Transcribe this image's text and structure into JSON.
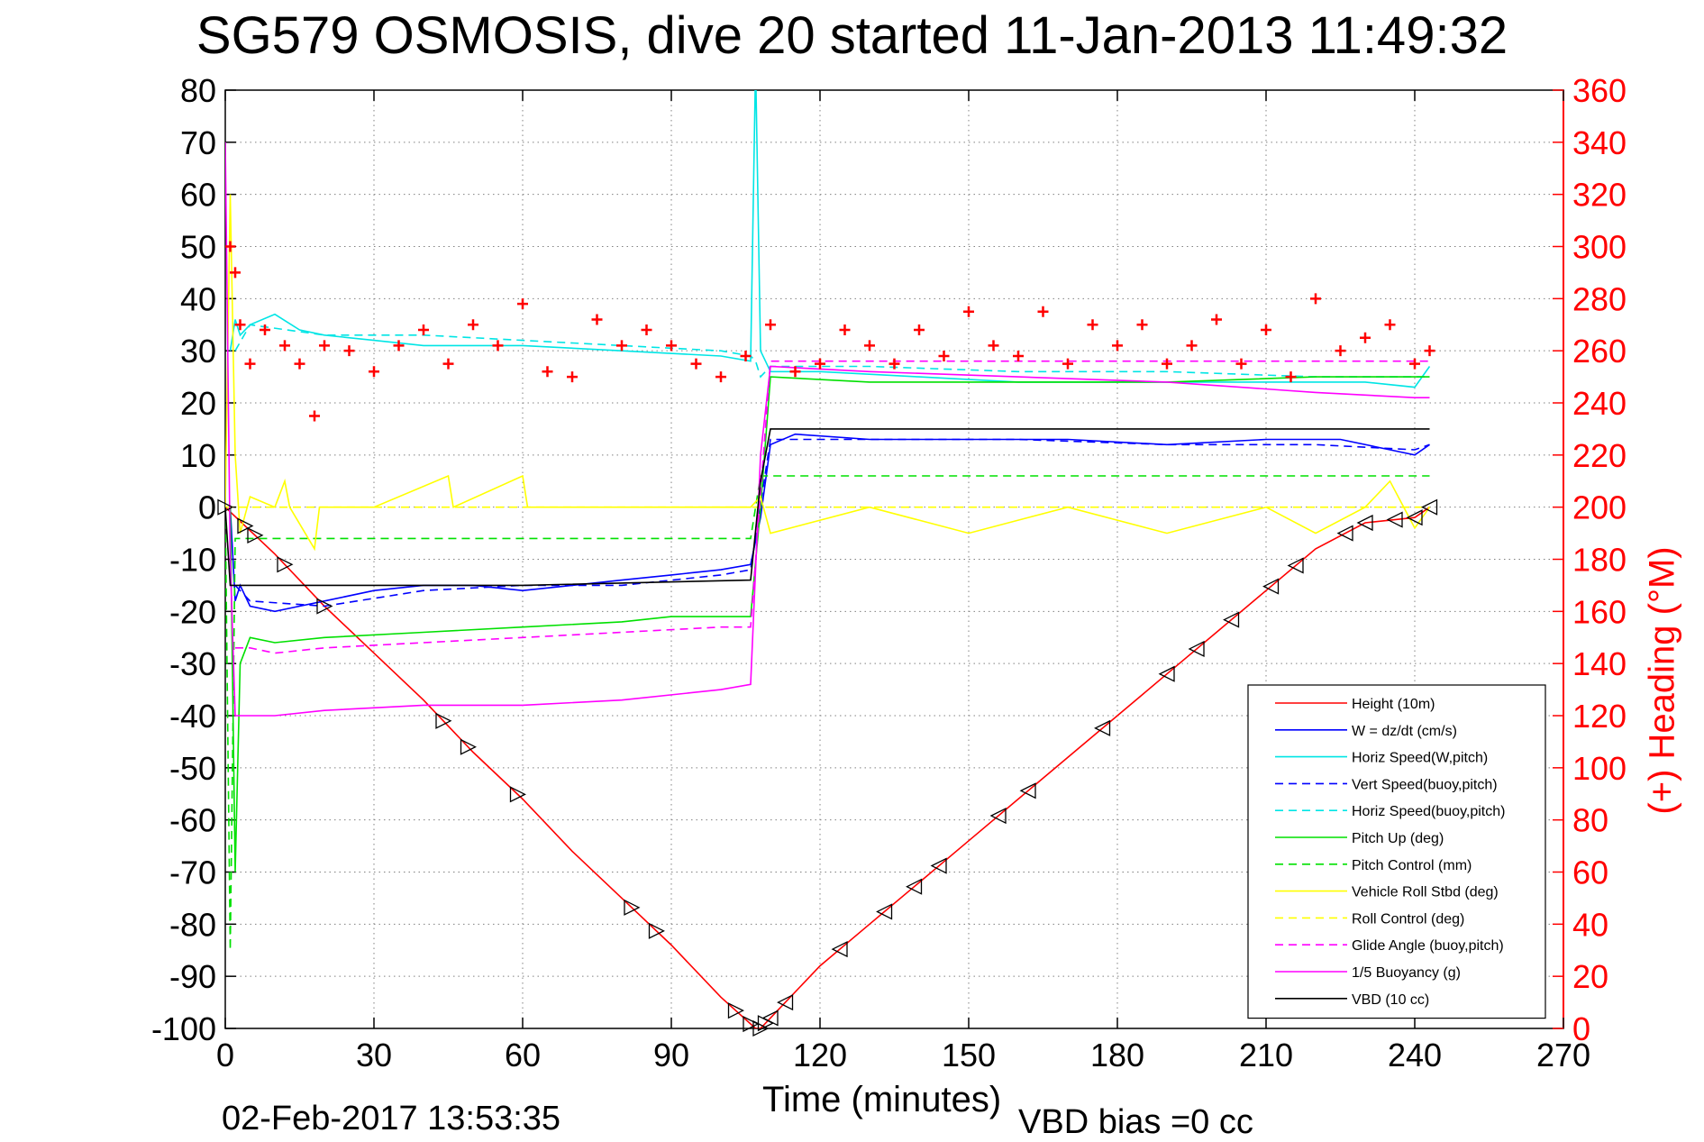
{
  "title": "SG579 OSMOSIS, dive 20 started 11-Jan-2013 11:49:32",
  "timestamp": "02-Feb-2017 13:53:35",
  "vbd_bias": "VBD bias =0 cc",
  "chart_data": {
    "type": "line",
    "title": "SG579 OSMOSIS, dive 20 started 11-Jan-2013 11:49:32",
    "xlabel": "Time (minutes)",
    "ylabel": "",
    "y2label": "(+) Heading (°M)",
    "xlim": [
      0,
      270
    ],
    "ylim": [
      -100,
      80
    ],
    "y2lim": [
      0,
      360
    ],
    "xticks": [
      0,
      30,
      60,
      90,
      120,
      150,
      180,
      210,
      240,
      270
    ],
    "yticks": [
      -100,
      -90,
      -80,
      -70,
      -60,
      -50,
      -40,
      -30,
      -20,
      -10,
      0,
      10,
      20,
      30,
      40,
      50,
      60,
      70,
      80
    ],
    "y2ticks": [
      0,
      20,
      40,
      60,
      80,
      100,
      120,
      140,
      160,
      180,
      200,
      220,
      240,
      260,
      280,
      300,
      320,
      340,
      360
    ],
    "grid": true,
    "legend_position": "bottom-right",
    "series": [
      {
        "name": "Height (10m)",
        "color": "#ff0000",
        "style": "solid",
        "x": [
          0,
          10,
          20,
          30,
          40,
          50,
          60,
          70,
          80,
          90,
          100,
          107,
          108,
          110,
          120,
          130,
          140,
          150,
          160,
          170,
          180,
          190,
          200,
          210,
          220,
          230,
          240,
          243
        ],
        "y": [
          0,
          -9,
          -19,
          -28,
          -37,
          -47,
          -56,
          -66,
          -75,
          -84,
          -94,
          -100,
          -100,
          -98,
          -88,
          -80,
          -72,
          -64,
          -56,
          -48,
          -40,
          -32,
          -24,
          -16,
          -8,
          -3,
          -2,
          0
        ]
      },
      {
        "name": "W = dz/dt (cm/s)",
        "color": "#0000ff",
        "style": "solid",
        "x": [
          1,
          2,
          3,
          5,
          10,
          15,
          20,
          30,
          40,
          50,
          60,
          70,
          80,
          90,
          100,
          106,
          108,
          110,
          115,
          130,
          150,
          170,
          190,
          210,
          225,
          235,
          240,
          243
        ],
        "y": [
          0,
          -18,
          -15,
          -19,
          -20,
          -19,
          -18,
          -16,
          -15,
          -15,
          -16,
          -15,
          -14,
          -13,
          -12,
          -11,
          -2,
          12,
          14,
          13,
          13,
          13,
          12,
          13,
          13,
          11,
          10,
          12
        ]
      },
      {
        "name": "Horiz Speed(W,pitch)",
        "color": "#00e5e5",
        "style": "solid",
        "x": [
          1,
          2,
          3,
          5,
          10,
          15,
          20,
          30,
          40,
          60,
          80,
          100,
          106,
          107,
          108,
          109,
          110,
          120,
          140,
          160,
          180,
          200,
          220,
          230,
          240,
          243
        ],
        "y": [
          30,
          36,
          33,
          35,
          37,
          34,
          33,
          32,
          31,
          31,
          30,
          29,
          28,
          85,
          30,
          28,
          26,
          26,
          25,
          24,
          24,
          24,
          24,
          24,
          23,
          27
        ]
      },
      {
        "name": "Vert Speed(buoy,pitch)",
        "color": "#0000ff",
        "style": "dashed",
        "x": [
          2,
          5,
          20,
          40,
          60,
          80,
          100,
          106,
          110,
          130,
          160,
          190,
          220,
          240,
          243
        ],
        "y": [
          -15,
          -18,
          -19,
          -16,
          -15,
          -15,
          -13,
          -12,
          13,
          13,
          13,
          12,
          12,
          11,
          12
        ]
      },
      {
        "name": "Horiz Speed(buoy,pitch)",
        "color": "#00e5e5",
        "style": "dashed",
        "x": [
          2,
          5,
          20,
          40,
          60,
          80,
          100,
          106,
          107,
          108,
          110,
          130,
          160,
          190,
          220,
          243
        ],
        "y": [
          30,
          35,
          33,
          33,
          32,
          31,
          30,
          29,
          28,
          25,
          27,
          27,
          26,
          26,
          25,
          25
        ]
      },
      {
        "name": "Pitch Up (deg)",
        "color": "#00e000",
        "style": "solid",
        "x": [
          1,
          2,
          3,
          5,
          10,
          20,
          40,
          60,
          80,
          90,
          100,
          106,
          108,
          110,
          130,
          160,
          190,
          220,
          240,
          243
        ],
        "y": [
          0,
          -70,
          -30,
          -25,
          -26,
          -25,
          -24,
          -23,
          -22,
          -21,
          -21,
          -21,
          0,
          25,
          24,
          24,
          24,
          25,
          25,
          25
        ]
      },
      {
        "name": "Pitch Control (mm)",
        "color": "#00e000",
        "style": "dashed",
        "x": [
          0,
          1,
          2,
          5,
          20,
          60,
          106,
          108,
          110,
          243
        ],
        "y": [
          0,
          -85,
          -6,
          -6,
          -6,
          -6,
          -6,
          6,
          6,
          6
        ]
      },
      {
        "name": "Vehicle Roll Stbd (deg)",
        "color": "#ffff00",
        "style": "solid",
        "x": [
          0,
          1,
          2,
          3,
          5,
          10,
          12,
          13,
          18,
          19,
          30,
          45,
          46,
          60,
          61,
          80,
          95,
          106,
          108,
          110,
          130,
          150,
          170,
          190,
          210,
          220,
          230,
          235,
          240,
          243
        ],
        "y": [
          0,
          60,
          10,
          -5,
          2,
          0,
          5,
          0,
          -8,
          0,
          0,
          6,
          0,
          6,
          0,
          0,
          0,
          0,
          2,
          -5,
          0,
          -5,
          0,
          -5,
          0,
          -5,
          0,
          5,
          -4,
          0
        ]
      },
      {
        "name": "Roll Control (deg)",
        "color": "#ffff00",
        "style": "dashed",
        "x": [
          0,
          243
        ],
        "y": [
          0,
          0
        ]
      },
      {
        "name": "Glide Angle (buoy,pitch)",
        "color": "#ff00ff",
        "style": "dashed",
        "x": [
          2,
          5,
          10,
          20,
          40,
          60,
          80,
          100,
          106,
          110,
          130,
          160,
          190,
          220,
          240,
          243
        ],
        "y": [
          -27,
          -27,
          -28,
          -27,
          -26,
          -25,
          -24,
          -23,
          -23,
          28,
          28,
          28,
          28,
          28,
          28,
          28
        ]
      },
      {
        "name": "1/5 Buoyancy (g)",
        "color": "#ff00ff",
        "style": "solid",
        "x": [
          0,
          1,
          2,
          10,
          20,
          40,
          60,
          80,
          100,
          106,
          108,
          110,
          130,
          160,
          190,
          220,
          240,
          243
        ],
        "y": [
          70,
          -10,
          -40,
          -40,
          -39,
          -38,
          -38,
          -37,
          -35,
          -34,
          10,
          27,
          26,
          25,
          24,
          22,
          21,
          21
        ]
      },
      {
        "name": "VBD (10 cc)",
        "color": "#000000",
        "style": "solid",
        "x": [
          0,
          1,
          2,
          5,
          20,
          60,
          106,
          108,
          110,
          243
        ],
        "y": [
          0,
          -15,
          -15,
          -15,
          -15,
          -15,
          -14,
          5,
          15,
          15
        ]
      },
      {
        "name": "(+) Heading",
        "color": "#ff0000",
        "style": "markers",
        "axis": "right",
        "x": [
          1,
          2,
          3,
          5,
          8,
          12,
          15,
          18,
          20,
          25,
          30,
          35,
          40,
          45,
          50,
          55,
          60,
          65,
          70,
          75,
          80,
          85,
          90,
          95,
          100,
          105,
          110,
          115,
          120,
          125,
          130,
          135,
          140,
          145,
          150,
          155,
          160,
          165,
          170,
          175,
          180,
          185,
          190,
          195,
          200,
          205,
          210,
          215,
          220,
          225,
          230,
          235,
          240,
          243
        ],
        "y": [
          300,
          290,
          270,
          255,
          268,
          262,
          255,
          235,
          262,
          260,
          252,
          262,
          268,
          255,
          270,
          262,
          278,
          252,
          250,
          272,
          262,
          268,
          262,
          255,
          250,
          258,
          270,
          252,
          255,
          268,
          262,
          255,
          268,
          258,
          275,
          262,
          258,
          275,
          255,
          270,
          262,
          270,
          255,
          262,
          272,
          255,
          268,
          250,
          280,
          260,
          265,
          270,
          255,
          260
        ]
      }
    ]
  }
}
